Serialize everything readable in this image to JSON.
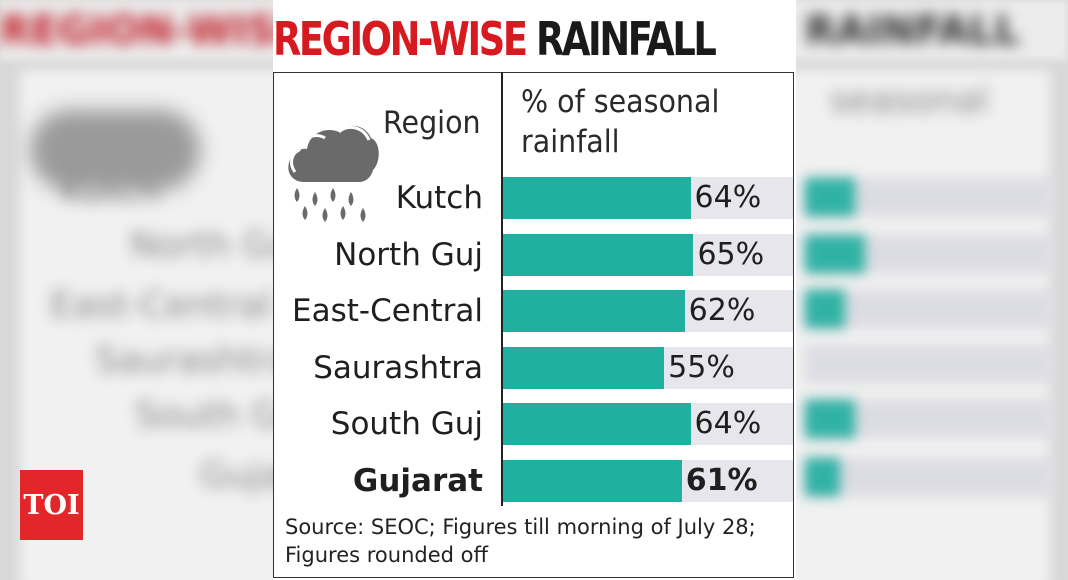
{
  "title": {
    "part1": "REGION-WISE",
    "part2": "RAINFALL"
  },
  "header": {
    "region_label": "Region",
    "pct_label": "% of seasonal rainfall"
  },
  "chart_data": {
    "type": "bar",
    "orientation": "horizontal",
    "title": "REGION-WISE RAINFALL",
    "categories": [
      "Kutch",
      "North Guj",
      "East-Central",
      "Saurashtra",
      "South Guj",
      "Gujarat"
    ],
    "values": [
      64,
      65,
      62,
      55,
      64,
      61
    ],
    "value_labels": [
      "64%",
      "65%",
      "62%",
      "55%",
      "64%",
      "61%"
    ],
    "bold_rows": [
      false,
      false,
      false,
      false,
      false,
      true
    ],
    "xlim": [
      0,
      100
    ],
    "xlabel": "% of seasonal rainfall",
    "ylabel": "Region",
    "grid": false,
    "bar_color": "#1fb0a0",
    "track_color": "#e6e6ec"
  },
  "source": "Source: SEOC; Figures till morning of July 28; Figures rounded off",
  "logo": {
    "text": "TOI",
    "color": "#e2262a"
  },
  "icons": {
    "weather": "rain-cloud-icon"
  }
}
